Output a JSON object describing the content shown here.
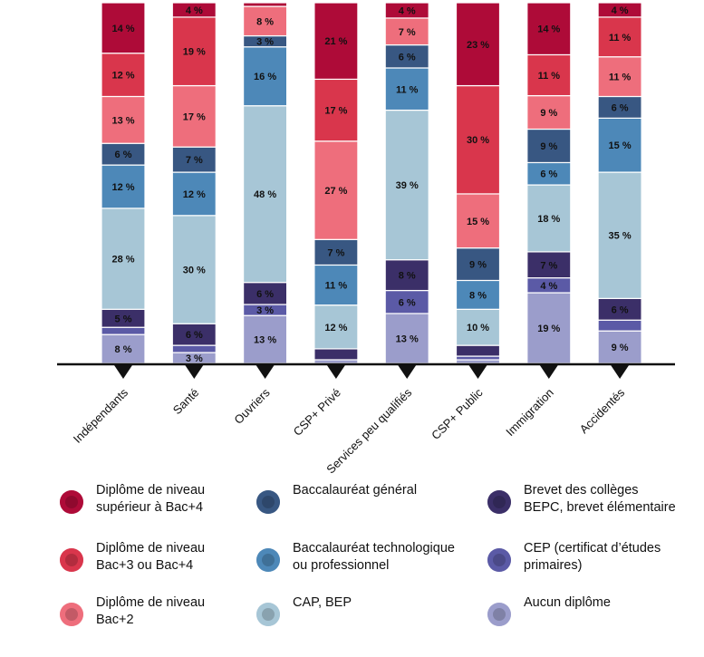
{
  "chart_data": {
    "type": "bar",
    "stacked": true,
    "orientation": "vertical",
    "categories": [
      "Indépendants",
      "Santé",
      "Ouvriers",
      "CSP+ Privé",
      "Services peu qualifiés",
      "CSP+ Public",
      "Immigration",
      "Accidentés"
    ],
    "series": [
      {
        "name": "Aucun diplôme",
        "color": "#9b9dcb",
        "values": [
          8,
          3,
          13,
          1,
          13,
          1,
          19,
          9
        ],
        "labels": [
          "8 %",
          "3 %",
          "13 %",
          "",
          "13 %",
          "",
          "19 %",
          "9 %"
        ]
      },
      {
        "name": "CEP (certificat d’études\nprimaires)",
        "color": "#5b5aa6",
        "values": [
          2,
          2,
          3,
          0,
          6,
          1,
          4,
          3
        ],
        "labels": [
          "",
          "",
          "3 %",
          "",
          "6 %",
          "",
          "4 %",
          ""
        ]
      },
      {
        "name": "Brevet des collèges\nBEPC, brevet élémentaire",
        "color": "#3b2f68",
        "values": [
          5,
          6,
          6,
          3,
          8,
          3,
          7,
          6
        ],
        "labels": [
          "5 %",
          "6 %",
          "6 %",
          "",
          "8 %",
          "",
          "7 %",
          "6 %"
        ]
      },
      {
        "name": "CAP, BEP",
        "color": "#a7c6d6",
        "values": [
          28,
          30,
          48,
          12,
          39,
          10,
          18,
          35
        ],
        "labels": [
          "28 %",
          "30 %",
          "48 %",
          "12 %",
          "39 %",
          "10 %",
          "18 %",
          "35 %"
        ]
      },
      {
        "name": "Baccalauréat technologique\nou professionnel",
        "color": "#4d88b8",
        "values": [
          12,
          12,
          16,
          11,
          11,
          8,
          6,
          15
        ],
        "labels": [
          "12 %",
          "12 %",
          "16 %",
          "11 %",
          "11 %",
          "8 %",
          "6 %",
          "15 %"
        ]
      },
      {
        "name": "Baccalauréat général",
        "color": "#385782",
        "values": [
          6,
          7,
          3,
          7,
          6,
          9,
          9,
          6
        ],
        "labels": [
          "6 %",
          "7 %",
          "3 %",
          "7 %",
          "6 %",
          "9 %",
          "9 %",
          "6 %"
        ]
      },
      {
        "name": "Diplôme de niveau\nBac+2",
        "color": "#ee6e7c",
        "values": [
          13,
          17,
          8,
          27,
          7,
          15,
          9,
          11
        ],
        "labels": [
          "13 %",
          "17 %",
          "8 %",
          "27 %",
          "7 %",
          "15 %",
          "9 %",
          "11 %"
        ]
      },
      {
        "name": "Diplôme de niveau\nBac+3 ou Bac+4",
        "color": "#d9364c",
        "values": [
          12,
          19,
          0,
          17,
          0,
          30,
          11,
          11
        ],
        "labels": [
          "12 %",
          "19 %",
          "",
          "17 %",
          "",
          "30 %",
          "11 %",
          "11 %"
        ]
      },
      {
        "name": "Diplôme de niveau\nsupérieur à Bac+4",
        "color": "#ae0b38",
        "values": [
          14,
          4,
          1,
          21,
          4,
          23,
          14,
          4
        ],
        "labels": [
          "14 %",
          "4 %",
          "",
          "21 %",
          "4 %",
          "23 %",
          "14 %",
          "4 %"
        ]
      }
    ],
    "ylim": [
      0,
      100
    ],
    "grid": false,
    "legend_position": "bottom"
  },
  "legend_columns": [
    [
      8,
      7,
      6
    ],
    [
      5,
      4,
      3
    ],
    [
      2,
      1,
      0
    ]
  ]
}
